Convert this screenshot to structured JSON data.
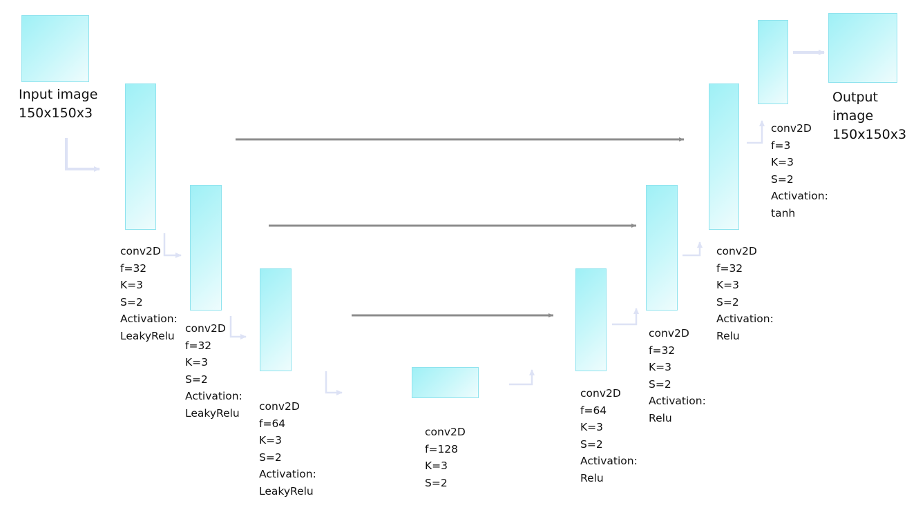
{
  "input_label": [
    "Input image",
    "150x150x3"
  ],
  "output_label": [
    "Output",
    "image",
    "150x150x3"
  ],
  "layers": [
    {
      "lines": [
        "conv2D",
        "f=32",
        "K=3",
        "S=2",
        "Activation:",
        "LeakyRelu"
      ]
    },
    {
      "lines": [
        "conv2D",
        "f=32",
        "K=3",
        "S=2",
        "Activation:",
        "LeakyRelu"
      ]
    },
    {
      "lines": [
        "conv2D",
        "f=64",
        "K=3",
        "S=2",
        "Activation:",
        "LeakyRelu"
      ]
    },
    {
      "lines": [
        "conv2D",
        "f=128",
        "K=3",
        "S=2"
      ]
    },
    {
      "lines": [
        "conv2D",
        "f=64",
        "K=3",
        "S=2",
        "Activation:",
        "Relu"
      ]
    },
    {
      "lines": [
        "conv2D",
        "f=32",
        "K=3",
        "S=2",
        "Activation:",
        "Relu"
      ]
    },
    {
      "lines": [
        "conv2D",
        "f=32",
        "K=3",
        "S=2",
        "Activation:",
        "Relu"
      ]
    },
    {
      "lines": [
        "conv2D",
        "f=3",
        "K=3",
        "S=2",
        "Activation:",
        "tanh"
      ]
    }
  ],
  "colors": {
    "block_fill": "#b8f4f8",
    "block_border": "#8fe3ee",
    "flow_arrow": "#dde2f5",
    "skip_arrow": "#8c8c8c"
  }
}
